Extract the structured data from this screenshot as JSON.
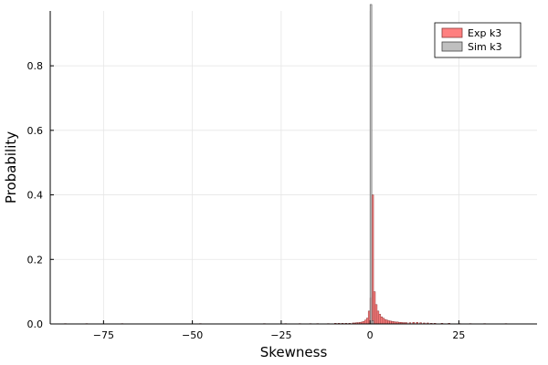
{
  "chart_data": {
    "type": "bar",
    "title": "",
    "xlabel": "Skewness",
    "ylabel": "Probability",
    "xlim": [
      -90,
      47
    ],
    "ylim": [
      0,
      0.97
    ],
    "grid": true,
    "legend_position": "top-right",
    "x_ticks": [
      {
        "value": -75,
        "label": "−75"
      },
      {
        "value": -50,
        "label": "−50"
      },
      {
        "value": -25,
        "label": "−25"
      },
      {
        "value": 0,
        "label": "0"
      },
      {
        "value": 25,
        "label": "25"
      }
    ],
    "y_ticks": [
      {
        "value": 0.0,
        "label": "0.0"
      },
      {
        "value": 0.2,
        "label": "0.2"
      },
      {
        "value": 0.4,
        "label": "0.4"
      },
      {
        "value": 0.6,
        "label": "0.6"
      },
      {
        "value": 0.8,
        "label": "0.8"
      }
    ],
    "bin_width": 0.5,
    "series": [
      {
        "name": "Exp k3",
        "color": "#ff7f7f",
        "edge_color": "#8b3a3a",
        "bins": [
          [
            -86,
            0.001
          ],
          [
            -80,
            0.001
          ],
          [
            -70,
            0.001
          ],
          [
            -48,
            0.001
          ],
          [
            -30,
            0.001
          ],
          [
            -24,
            0.001
          ],
          [
            -20,
            0.001
          ],
          [
            -17,
            0.001
          ],
          [
            -15,
            0.001
          ],
          [
            -12,
            0.001
          ],
          [
            -10,
            0.002
          ],
          [
            -9,
            0.002
          ],
          [
            -8,
            0.002
          ],
          [
            -7,
            0.002
          ],
          [
            -6,
            0.002
          ],
          [
            -5,
            0.003
          ],
          [
            -4.5,
            0.003
          ],
          [
            -4,
            0.004
          ],
          [
            -3.5,
            0.004
          ],
          [
            -3,
            0.005
          ],
          [
            -2.5,
            0.006
          ],
          [
            -2,
            0.008
          ],
          [
            -1.5,
            0.012
          ],
          [
            -1,
            0.018
          ],
          [
            -0.5,
            0.04
          ],
          [
            0,
            0.08
          ],
          [
            0.5,
            0.4
          ],
          [
            1,
            0.1
          ],
          [
            1.5,
            0.06
          ],
          [
            2,
            0.04
          ],
          [
            2.5,
            0.03
          ],
          [
            3,
            0.022
          ],
          [
            3.5,
            0.018
          ],
          [
            4,
            0.014
          ],
          [
            4.5,
            0.012
          ],
          [
            5,
            0.01
          ],
          [
            5.5,
            0.009
          ],
          [
            6,
            0.008
          ],
          [
            6.5,
            0.007
          ],
          [
            7,
            0.006
          ],
          [
            7.5,
            0.006
          ],
          [
            8,
            0.005
          ],
          [
            8.5,
            0.005
          ],
          [
            9,
            0.004
          ],
          [
            9.5,
            0.004
          ],
          [
            10,
            0.004
          ],
          [
            11,
            0.004
          ],
          [
            12,
            0.005
          ],
          [
            13,
            0.005
          ],
          [
            14,
            0.004
          ],
          [
            15,
            0.003
          ],
          [
            16,
            0.003
          ],
          [
            17,
            0.002
          ],
          [
            18,
            0.002
          ],
          [
            20,
            0.002
          ],
          [
            22,
            0.002
          ],
          [
            25,
            0.001
          ],
          [
            28,
            0.001
          ],
          [
            32,
            0.001
          ],
          [
            38,
            0.001
          ]
        ]
      },
      {
        "name": "Sim k3",
        "color": "#bfbfbf",
        "edge_color": "#444444",
        "bins": [
          [
            0,
            0.99
          ],
          [
            0.5,
            0.01
          ]
        ]
      }
    ]
  }
}
